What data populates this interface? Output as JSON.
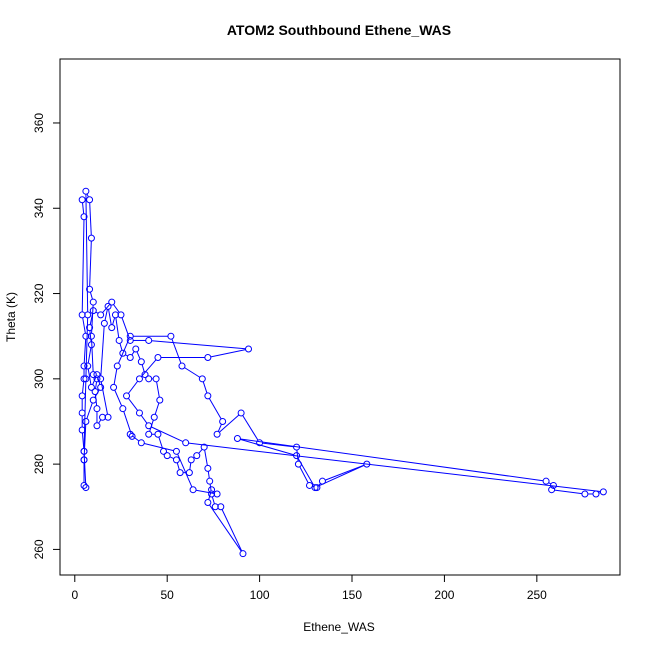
{
  "chart_data": {
    "type": "line",
    "title": "ATOM2 Southbound Ethene_WAS",
    "xlabel": "Ethene_WAS",
    "ylabel": "Theta (K)",
    "xlim": [
      -8,
      295
    ],
    "ylim": [
      254,
      375
    ],
    "xticks": [
      0,
      50,
      100,
      150,
      200,
      250
    ],
    "yticks": [
      260,
      280,
      300,
      320,
      340,
      360
    ],
    "series_color": "#0000ff",
    "marker": "open-circle",
    "grid": false,
    "series": [
      {
        "points": [
          {
            "x": 4,
            "y": 342
          },
          {
            "x": 5,
            "y": 338
          },
          {
            "x": 4,
            "y": 315
          },
          {
            "x": 6,
            "y": 310
          },
          {
            "x": 5,
            "y": 303
          },
          {
            "x": 5,
            "y": 300
          },
          {
            "x": 4,
            "y": 296
          },
          {
            "x": 4,
            "y": 292
          },
          {
            "x": 4,
            "y": 288
          },
          {
            "x": 5,
            "y": 283
          },
          {
            "x": 5,
            "y": 281
          },
          {
            "x": 5,
            "y": 275
          },
          {
            "x": 6,
            "y": 274.5
          },
          {
            "x": 5,
            "y": 283
          },
          {
            "x": 6,
            "y": 300
          },
          {
            "x": 7,
            "y": 315
          },
          {
            "x": 6,
            "y": 344
          },
          {
            "x": 8,
            "y": 342
          },
          {
            "x": 9,
            "y": 333
          },
          {
            "x": 8,
            "y": 321
          },
          {
            "x": 10,
            "y": 318
          },
          {
            "x": 9,
            "y": 310
          },
          {
            "x": 10,
            "y": 301
          },
          {
            "x": 12,
            "y": 300
          },
          {
            "x": 11,
            "y": 297
          },
          {
            "x": 12,
            "y": 293
          },
          {
            "x": 12,
            "y": 289
          },
          {
            "x": 15,
            "y": 291
          },
          {
            "x": 18,
            "y": 291
          },
          {
            "x": 14,
            "y": 300
          },
          {
            "x": 16,
            "y": 313
          },
          {
            "x": 18,
            "y": 317
          },
          {
            "x": 20,
            "y": 312
          },
          {
            "x": 22,
            "y": 315
          },
          {
            "x": 24,
            "y": 309
          },
          {
            "x": 26,
            "y": 306
          },
          {
            "x": 30,
            "y": 305
          },
          {
            "x": 33,
            "y": 307
          },
          {
            "x": 36,
            "y": 304
          },
          {
            "x": 38,
            "y": 301
          },
          {
            "x": 40,
            "y": 300
          },
          {
            "x": 44,
            "y": 300
          },
          {
            "x": 46,
            "y": 295
          },
          {
            "x": 43,
            "y": 291
          },
          {
            "x": 40,
            "y": 287
          },
          {
            "x": 45,
            "y": 287
          },
          {
            "x": 48,
            "y": 283
          },
          {
            "x": 50,
            "y": 282
          },
          {
            "x": 55,
            "y": 281
          },
          {
            "x": 57,
            "y": 278
          },
          {
            "x": 62,
            "y": 278
          },
          {
            "x": 63,
            "y": 281
          },
          {
            "x": 66,
            "y": 282
          },
          {
            "x": 70,
            "y": 284
          },
          {
            "x": 72,
            "y": 279
          },
          {
            "x": 73,
            "y": 276
          },
          {
            "x": 74,
            "y": 273
          },
          {
            "x": 76,
            "y": 270
          },
          {
            "x": 79,
            "y": 270
          },
          {
            "x": 91,
            "y": 259
          },
          {
            "x": 72,
            "y": 271
          },
          {
            "x": 74,
            "y": 274
          },
          {
            "x": 77,
            "y": 273
          },
          {
            "x": 64,
            "y": 274
          },
          {
            "x": 55,
            "y": 283
          },
          {
            "x": 36,
            "y": 285
          },
          {
            "x": 30,
            "y": 287
          },
          {
            "x": 31,
            "y": 286.5
          },
          {
            "x": 26,
            "y": 293
          },
          {
            "x": 21,
            "y": 298
          },
          {
            "x": 23,
            "y": 303
          },
          {
            "x": 30,
            "y": 310
          },
          {
            "x": 52,
            "y": 310
          },
          {
            "x": 58,
            "y": 303
          },
          {
            "x": 69,
            "y": 300
          },
          {
            "x": 72,
            "y": 296
          },
          {
            "x": 80,
            "y": 290
          },
          {
            "x": 77,
            "y": 287
          },
          {
            "x": 90,
            "y": 292
          },
          {
            "x": 100,
            "y": 285
          },
          {
            "x": 120,
            "y": 284
          },
          {
            "x": 121,
            "y": 280
          },
          {
            "x": 127,
            "y": 275
          },
          {
            "x": 131,
            "y": 274.5
          },
          {
            "x": 134,
            "y": 276
          },
          {
            "x": 158,
            "y": 280
          },
          {
            "x": 130,
            "y": 274.5
          },
          {
            "x": 120,
            "y": 282
          },
          {
            "x": 88,
            "y": 286
          },
          {
            "x": 255,
            "y": 276
          },
          {
            "x": 259,
            "y": 275
          },
          {
            "x": 258,
            "y": 274
          },
          {
            "x": 276,
            "y": 273
          },
          {
            "x": 282,
            "y": 273
          },
          {
            "x": 286,
            "y": 273.5
          },
          {
            "x": 60,
            "y": 285
          },
          {
            "x": 40,
            "y": 289
          },
          {
            "x": 35,
            "y": 292
          },
          {
            "x": 28,
            "y": 296
          },
          {
            "x": 35,
            "y": 300
          },
          {
            "x": 45,
            "y": 305
          },
          {
            "x": 72,
            "y": 305
          },
          {
            "x": 94,
            "y": 307
          },
          {
            "x": 40,
            "y": 309
          },
          {
            "x": 30,
            "y": 309
          },
          {
            "x": 25,
            "y": 315
          },
          {
            "x": 20,
            "y": 318
          },
          {
            "x": 14,
            "y": 315
          },
          {
            "x": 10,
            "y": 316
          },
          {
            "x": 8,
            "y": 312
          },
          {
            "x": 9,
            "y": 308
          },
          {
            "x": 7,
            "y": 303
          },
          {
            "x": 9,
            "y": 298
          },
          {
            "x": 12,
            "y": 301
          },
          {
            "x": 14,
            "y": 298
          },
          {
            "x": 10,
            "y": 295
          },
          {
            "x": 6,
            "y": 290
          },
          {
            "x": 5,
            "y": 281
          }
        ]
      }
    ]
  }
}
